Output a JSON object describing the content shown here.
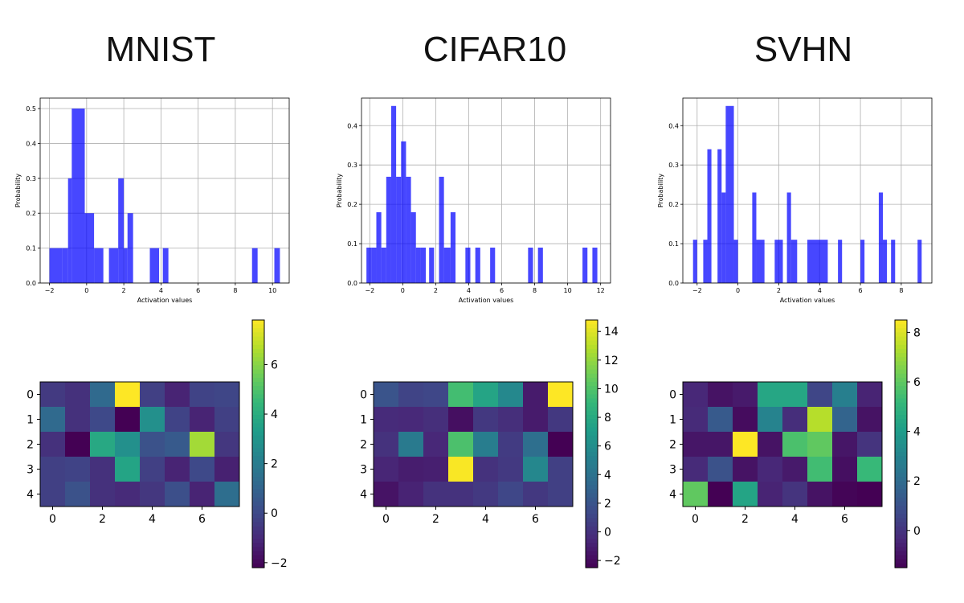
{
  "titles": [
    "MNIST",
    "CIFAR10",
    "SVHN"
  ],
  "colors": {
    "bar": "#0000ff",
    "grid": "#b0b0b0",
    "axis": "#000000"
  },
  "chart_data": [
    {
      "type": "bar",
      "panel": "MNIST histogram",
      "title": "MNIST",
      "xlabel": "Activation values",
      "ylabel": "Probability",
      "xlim": [
        -2.5,
        10.9
      ],
      "ylim": [
        0,
        0.53
      ],
      "xticks": [
        -2,
        0,
        2,
        4,
        6,
        8,
        10
      ],
      "yticks": [
        0.0,
        0.1,
        0.2,
        0.3,
        0.4,
        0.5
      ],
      "ytick_labels": [
        "0.0",
        "0.1",
        "0.2",
        "0.3",
        "0.4",
        "0.5"
      ],
      "bars": [
        [
          -2.0,
          -1.3,
          0.1
        ],
        [
          -1.3,
          -1.0,
          0.1
        ],
        [
          -1.0,
          -0.8,
          0.3
        ],
        [
          -0.8,
          -0.1,
          0.5
        ],
        [
          -0.1,
          0.4,
          0.2
        ],
        [
          0.4,
          0.9,
          0.1
        ],
        [
          1.2,
          1.7,
          0.1
        ],
        [
          1.7,
          2.0,
          0.3
        ],
        [
          2.0,
          2.2,
          0.1
        ],
        [
          2.2,
          2.5,
          0.2
        ],
        [
          3.4,
          3.9,
          0.1
        ],
        [
          4.1,
          4.4,
          0.1
        ],
        [
          8.9,
          9.2,
          0.1
        ],
        [
          10.1,
          10.4,
          0.1
        ]
      ]
    },
    {
      "type": "bar",
      "panel": "CIFAR10 histogram",
      "title": "CIFAR10",
      "xlabel": "Activation values",
      "ylabel": "Probability",
      "xlim": [
        -2.5,
        12.6
      ],
      "ylim": [
        0,
        0.47
      ],
      "xticks": [
        -2,
        0,
        2,
        4,
        6,
        8,
        10,
        12
      ],
      "yticks": [
        0.0,
        0.1,
        0.2,
        0.3,
        0.4
      ],
      "ytick_labels": [
        "0.0",
        "0.1",
        "0.2",
        "0.3",
        "0.4"
      ],
      "bars": [
        [
          -2.2,
          -1.9,
          0.09
        ],
        [
          -1.9,
          -1.6,
          0.09
        ],
        [
          -1.6,
          -1.3,
          0.18
        ],
        [
          -1.3,
          -1.0,
          0.09
        ],
        [
          -1.0,
          -0.7,
          0.27
        ],
        [
          -0.7,
          -0.4,
          0.45
        ],
        [
          -0.4,
          -0.1,
          0.27
        ],
        [
          -0.1,
          0.2,
          0.36
        ],
        [
          0.2,
          0.5,
          0.27
        ],
        [
          0.5,
          0.8,
          0.18
        ],
        [
          0.8,
          1.1,
          0.09
        ],
        [
          1.1,
          1.4,
          0.09
        ],
        [
          1.6,
          1.9,
          0.09
        ],
        [
          2.2,
          2.5,
          0.27
        ],
        [
          2.5,
          2.9,
          0.09
        ],
        [
          2.9,
          3.2,
          0.18
        ],
        [
          3.8,
          4.1,
          0.09
        ],
        [
          4.4,
          4.7,
          0.09
        ],
        [
          5.3,
          5.6,
          0.09
        ],
        [
          7.6,
          7.9,
          0.09
        ],
        [
          8.2,
          8.5,
          0.09
        ],
        [
          10.9,
          11.2,
          0.09
        ],
        [
          11.5,
          11.8,
          0.09
        ]
      ]
    },
    {
      "type": "bar",
      "panel": "SVHN histogram",
      "title": "SVHN",
      "xlabel": "Activation values",
      "ylabel": "Probability",
      "xlim": [
        -2.7,
        9.5
      ],
      "ylim": [
        0,
        0.47
      ],
      "xticks": [
        -2,
        0,
        2,
        4,
        6,
        8
      ],
      "yticks": [
        0.0,
        0.1,
        0.2,
        0.3,
        0.4
      ],
      "ytick_labels": [
        "0.0",
        "0.1",
        "0.2",
        "0.3",
        "0.4"
      ],
      "bars": [
        [
          -2.2,
          -2.0,
          0.11
        ],
        [
          -1.7,
          -1.5,
          0.11
        ],
        [
          -1.5,
          -1.3,
          0.34
        ],
        [
          -1.0,
          -0.8,
          0.34
        ],
        [
          -0.8,
          -0.6,
          0.23
        ],
        [
          -0.6,
          -0.2,
          0.45
        ],
        [
          -0.2,
          0.0,
          0.11
        ],
        [
          0.7,
          0.9,
          0.23
        ],
        [
          0.9,
          1.3,
          0.11
        ],
        [
          1.8,
          2.2,
          0.11
        ],
        [
          2.4,
          2.6,
          0.23
        ],
        [
          2.6,
          2.9,
          0.11
        ],
        [
          3.4,
          4.4,
          0.11
        ],
        [
          4.9,
          5.1,
          0.11
        ],
        [
          6.0,
          6.2,
          0.11
        ],
        [
          6.9,
          7.1,
          0.23
        ],
        [
          7.1,
          7.3,
          0.11
        ],
        [
          7.5,
          7.7,
          0.11
        ],
        [
          8.8,
          9.0,
          0.11
        ]
      ]
    },
    {
      "type": "heatmap",
      "panel": "MNIST heatmap",
      "title": "MNIST",
      "rows": 5,
      "cols": 8,
      "xticks": [
        0,
        2,
        4,
        6
      ],
      "yticks": [
        0,
        1,
        2,
        3,
        4
      ],
      "vmin": -2.2,
      "vmax": 7.8,
      "colorbar_ticks": [
        -2,
        0,
        2,
        4,
        6
      ],
      "colorbar_labels": [
        "−2",
        "0",
        "2",
        "4",
        "6"
      ],
      "values": [
        [
          -0.5,
          -0.8,
          1.2,
          7.8,
          -0.3,
          -1.2,
          -0.2,
          -0.1
        ],
        [
          1.2,
          -0.8,
          0.0,
          -2.2,
          2.8,
          -0.2,
          -1.2,
          -0.3
        ],
        [
          -0.8,
          -2.2,
          3.8,
          2.8,
          0.3,
          0.6,
          6.4,
          -0.6
        ],
        [
          -0.3,
          -0.2,
          -0.8,
          3.6,
          -0.3,
          -1.2,
          0.0,
          -1.3
        ],
        [
          -0.3,
          0.3,
          -0.8,
          -1.0,
          -0.6,
          0.2,
          -1.2,
          1.4
        ]
      ]
    },
    {
      "type": "heatmap",
      "panel": "CIFAR10 heatmap",
      "title": "CIFAR10",
      "rows": 5,
      "cols": 8,
      "xticks": [
        0,
        2,
        4,
        6
      ],
      "yticks": [
        0,
        1,
        2,
        3,
        4
      ],
      "vmin": -2.5,
      "vmax": 14.8,
      "colorbar_ticks": [
        -2,
        0,
        2,
        4,
        6,
        8,
        10,
        12,
        14
      ],
      "colorbar_labels": [
        "−2",
        "0",
        "2",
        "4",
        "6",
        "8",
        "10",
        "12",
        "14"
      ],
      "values": [
        [
          2.0,
          1.0,
          1.2,
          9.5,
          7.6,
          5.6,
          -1.2,
          14.8
        ],
        [
          -0.4,
          -0.5,
          -0.2,
          -1.8,
          0.3,
          -0.2,
          -1.2,
          0.3
        ],
        [
          0.0,
          4.6,
          -0.6,
          9.8,
          4.8,
          0.5,
          3.8,
          -2.5
        ],
        [
          -0.7,
          -1.1,
          -1.0,
          14.7,
          0.0,
          0.4,
          5.5,
          0.8
        ],
        [
          -1.6,
          -0.8,
          0.0,
          0.0,
          0.4,
          1.2,
          0.3,
          0.8
        ]
      ]
    },
    {
      "type": "heatmap",
      "panel": "SVHN heatmap",
      "title": "SVHN",
      "rows": 5,
      "cols": 8,
      "xticks": [
        0,
        2,
        4,
        6
      ],
      "yticks": [
        0,
        1,
        2,
        3,
        4
      ],
      "vmin": -1.5,
      "vmax": 8.5,
      "colorbar_ticks": [
        0,
        2,
        4,
        6,
        8
      ],
      "colorbar_labels": [
        "0",
        "2",
        "4",
        "6",
        "8"
      ],
      "values": [
        [
          -0.4,
          -1.0,
          -0.8,
          4.4,
          4.4,
          0.6,
          2.8,
          -0.5
        ],
        [
          -0.3,
          1.3,
          -1.2,
          3.0,
          -0.2,
          7.4,
          1.7,
          -1.0
        ],
        [
          -0.9,
          -0.9,
          8.5,
          -1.0,
          5.6,
          6.0,
          -0.9,
          0.0
        ],
        [
          -0.3,
          1.0,
          -1.0,
          -0.4,
          -0.8,
          5.4,
          -1.1,
          5.2
        ],
        [
          6.0,
          -1.5,
          4.3,
          -0.5,
          0.0,
          -1.0,
          -1.4,
          -1.5
        ]
      ]
    }
  ]
}
